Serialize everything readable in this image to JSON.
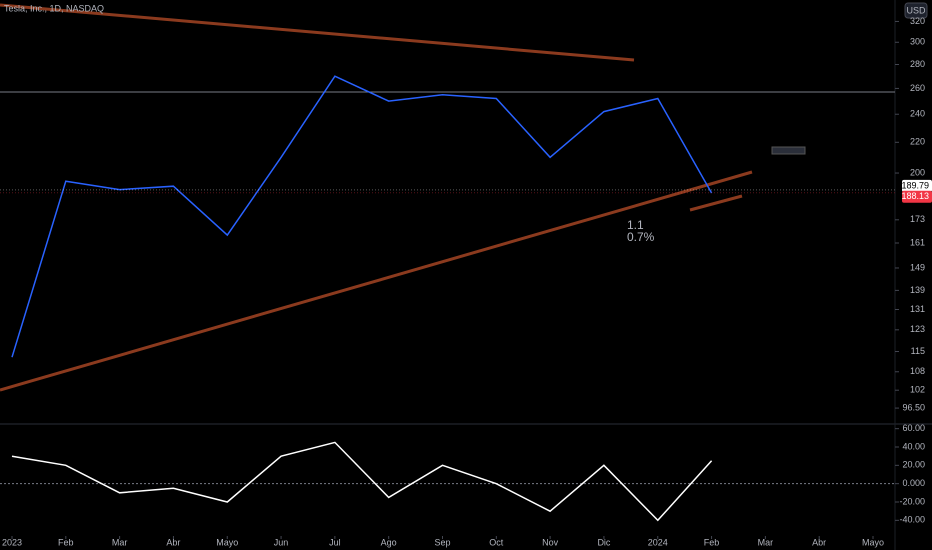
{
  "chart_data": {
    "type": "line",
    "title": "Tesla, Inc., 1D, NASDAQ",
    "currency": "USD",
    "x": [
      "2023-01",
      "2023-02",
      "2023-03",
      "2023-04",
      "2023-05",
      "2023-06",
      "2023-07",
      "2023-08",
      "2023-09",
      "2023-10",
      "2023-11",
      "2023-12",
      "2024-01",
      "2024-02"
    ],
    "series": [
      {
        "color": "#2962ff",
        "values": [
          113,
          195,
          190,
          192,
          165,
          210,
          270,
          250,
          255,
          252,
          210,
          242,
          252,
          188
        ]
      }
    ],
    "xlim": [
      "2023-01",
      "2024-05"
    ],
    "xticks": [
      {
        "value": "2023-01",
        "label": "2023"
      },
      {
        "value": "2023-02",
        "label": "Feb"
      },
      {
        "value": "2023-03",
        "label": "Mar"
      },
      {
        "value": "2023-04",
        "label": "Abr"
      },
      {
        "value": "2023-05",
        "label": "Mayo"
      },
      {
        "value": "2023-06",
        "label": "Jun"
      },
      {
        "value": "2023-07",
        "label": "Jul"
      },
      {
        "value": "2023-08",
        "label": "Ago"
      },
      {
        "value": "2023-09",
        "label": "Sep"
      },
      {
        "value": "2023-10",
        "label": "Oct"
      },
      {
        "value": "2023-11",
        "label": "Nov"
      },
      {
        "value": "2023-12",
        "label": "Dic"
      },
      {
        "value": "2024-01",
        "label": "2024"
      },
      {
        "value": "2024-02",
        "label": "Feb"
      },
      {
        "value": "2024-03",
        "label": "Mar"
      },
      {
        "value": "2024-04",
        "label": "Abr"
      },
      {
        "value": "2024-05",
        "label": "Mayo"
      }
    ],
    "ylim": [
      93,
      342
    ],
    "log_scale": true,
    "yticks": [
      320,
      300,
      280,
      260,
      240,
      220,
      200,
      173,
      161,
      149,
      139,
      131,
      123,
      115,
      108,
      102,
      {
        "value": 96.5,
        "label": "96.50"
      }
    ],
    "price_tags": [
      {
        "value": 189.79,
        "color": "#ffffff"
      },
      {
        "value": 188.13,
        "color": "#f23645"
      }
    ],
    "annotations": [
      "1.1",
      "0.7%"
    ],
    "oscillator": {
      "color": "#ffffff",
      "values": [
        30,
        20,
        -10,
        -5,
        -20,
        30,
        45,
        -15,
        20,
        0,
        -30,
        20,
        -40,
        25
      ],
      "ylim": [
        -56,
        64
      ],
      "yticks": [
        {
          "value": 60,
          "label": "60.00"
        },
        {
          "value": 40,
          "label": "40.00"
        },
        {
          "value": 20,
          "label": "20.00"
        },
        {
          "value": 0,
          "label": "0.000"
        },
        {
          "value": -20,
          "label": "-20.00"
        },
        {
          "value": -40,
          "label": "-40.00"
        }
      ]
    }
  }
}
